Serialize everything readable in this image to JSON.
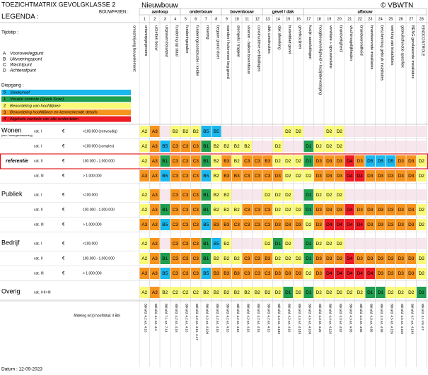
{
  "header": {
    "title": "TOEZICHTMATRIX GEVOLGKLASSE 2",
    "subtitle": "Nieuwbouw",
    "copyright": "© VBWTN",
    "legend_title": "LEGENDA :",
    "phases_label": "BOUWFASEN :",
    "element_label": "omschrijving bouwelement:"
  },
  "timing": {
    "label": "Tijdstip :",
    "items": [
      {
        "code": "A",
        "label": "Vooroverlegpunt"
      },
      {
        "code": "B",
        "label": "Uitvoeringspunt"
      },
      {
        "code": "C",
        "label": "Wachtpunt"
      },
      {
        "code": "D",
        "label": "Achterafpunt"
      }
    ]
  },
  "depth": {
    "label": "Diepgang :",
    "items": [
      {
        "number": "5",
        "label": "Steekproef",
        "color": "#1ab8ef"
      },
      {
        "number": "1",
        "label": "Visuele controle (Quick Scan)",
        "color": "#1f9e50"
      },
      {
        "number": "2",
        "label": "Beoordeling van hoofdlijnen",
        "color": "#fafa78"
      },
      {
        "number": "3",
        "label": "Beoordeling hoofdlijnen en kenmerkende details",
        "color": "#f7941d"
      },
      {
        "number": "4",
        "label": "Algehele controle van alle onderdelen",
        "color": "#ee1c24"
      }
    ]
  },
  "columns": [
    {
      "number": "1",
      "phase": "aanloop",
      "element": "ontwerpgegevens",
      "reference": "Bbl afd. 4.2 art. 4.16"
    },
    {
      "number": "2",
      "phase": "aanloop",
      "element": "uitzetten bouw",
      "reference": "Bbl afd. 4.1 art. 4.4"
    },
    {
      "number": "3",
      "phase": "aanloop",
      "element": "uitgraven bouwput",
      "reference": "Bbl afd. 7.1 art. 7.14"
    },
    {
      "number": "4",
      "phase": "aanloop",
      "element": "fundering op staal",
      "reference": "Bbl afd. 4.2 art. 4.16"
    },
    {
      "number": "5",
      "phase": "onderbouw",
      "element": "funderingspalen",
      "reference": "Bbl afd. 4.2 art. 4.16"
    },
    {
      "number": "6",
      "phase": "onderbouw",
      "element": "funderingsconstructie / kelder",
      "reference": "Bbl afd. 4.2 art. 4.16, 4.17"
    },
    {
      "number": "7",
      "phase": "onderbouw",
      "element": "riolering",
      "reference": "Bbl afd. 4.2 art. 4.190"
    },
    {
      "number": "8",
      "phase": "onderbouw",
      "element": "begane grond vloer",
      "reference": "Bbl afd. 4.2 art. 4.16"
    },
    {
      "number": "9",
      "phase": "bovenbouw",
      "element": "wanden / kolommen beg.grond",
      "reference": "Bbl afd. 4.2 art. 4.16"
    },
    {
      "number": "10",
      "phase": "bovenbouw",
      "element": "stempels / trappen",
      "reference": "Bbl afd. 4.2 art. 4.16"
    },
    {
      "number": "11",
      "phase": "bovenbouw",
      "element": "vloeren - balken bovenbouw",
      "reference": "Bbl afd. 4.2 art. 4.16"
    },
    {
      "number": "12",
      "phase": "bovenbouw",
      "element": "constructieve verbindingen",
      "reference": "Bbl afd. 4.2 art. 4.16"
    },
    {
      "number": "13",
      "phase": "gevel / dak",
      "element": "dak constructies",
      "reference": "Bbl afd. 4.2 art. 4.16"
    },
    {
      "number": "14",
      "phase": "gevel / dak",
      "element": "dak afwerking",
      "reference": "Bbl afd. 4.4 art. 4.149"
    },
    {
      "number": "15",
      "phase": "gevel / dak",
      "element": "buitenblad gevel",
      "reference": "Bbl afd. 4.2 art. 4.16"
    },
    {
      "number": "16",
      "phase": "gevel / dak",
      "element": "gevelkozijnen",
      "reference": "Bbl afd. 4.4 art. 4.149"
    },
    {
      "number": "17",
      "phase": "afbouw",
      "element": "kozijn aansluitingen",
      "reference": "Bbl afd. 4.6 art. 4.160"
    },
    {
      "number": "18",
      "phase": "afbouw",
      "element": "hoogbouw/veiligheid + kozijnbevestiging",
      "reference": "Bbl afd. 4.3 art. 4.25"
    },
    {
      "number": "19",
      "phase": "afbouw",
      "element": "ventilatie + spouwisolatie",
      "reference": "Bbl afd. 4.4 art. 4.126"
    },
    {
      "number": "20",
      "phase": "afbouw",
      "element": "brandveiligheid",
      "reference": "Bbl afd. 4.3 art. 4.52"
    },
    {
      "number": "21",
      "phase": "afbouw",
      "element": "vluchtmogelijkheden",
      "reference": "Bbl afd. 4.3 art. 4.68"
    },
    {
      "number": "22",
      "phase": "afbouw",
      "element": "brandwerendheid",
      "reference": "Bbl afd. 4.3 art. 4.55"
    },
    {
      "number": "23",
      "phase": "afbouw",
      "element": "brandwerende installaties",
      "reference": "Bbl afd. 4.3 art. 4.86"
    },
    {
      "number": "24",
      "phase": "afbouw",
      "element": "bescherming gebruik installaties",
      "reference": "Bbl afd. 4.3 art. 4.99"
    },
    {
      "number": "25",
      "phase": "afbouw",
      "element": "werking van installaties",
      "reference": "Bbl afd. 4.5 art. 4.155"
    },
    {
      "number": "26",
      "phase": "afbouw",
      "element": "gebruiksfunctie specifiek",
      "reference": "Bbl afd. 4.5 art. 4.156"
    },
    {
      "number": "27",
      "phase": "afbouw",
      "element": "BENG gerelateerde installaties",
      "reference": "Bbl afd. 4.7 art. 4.149"
    },
    {
      "number": "28",
      "phase": "afbouw",
      "element": "EINDCONTROLE",
      "reference": "Bbl afd. 4.1 t/m 4.7"
    }
  ],
  "sections": [
    {
      "label": "Wonen",
      "note": "(een-/ meergezinswoning)",
      "rows": [
        {
          "category": "cat. I",
          "currency": "€",
          "range": "<100.000 (eenvoudig)",
          "cells": [
            "A2",
            "A3",
            null,
            "B2",
            "B2",
            "B2",
            "B5",
            "B5",
            null,
            null,
            null,
            null,
            null,
            null,
            "D2",
            "D2",
            null,
            null,
            "D2",
            "D2",
            null,
            null,
            null,
            null,
            null,
            null,
            null,
            null
          ]
        },
        {
          "category": "cat. I",
          "currency": "€",
          "range": "<100.000 (complex)",
          "cells": [
            "A2",
            "A3",
            "B5",
            "C3",
            "C3",
            "C3",
            "B1",
            "B2",
            "B2",
            "B2",
            "B2",
            null,
            null,
            "D2",
            null,
            null,
            "D1",
            "D2",
            "D2",
            "D2",
            null,
            null,
            null,
            null,
            null,
            null,
            null,
            null
          ]
        },
        {
          "tag": "referentie",
          "category": "cat. II",
          "currency": "€",
          "range": "100.000 - 1.000.000",
          "cells": [
            "A2",
            "A3",
            "B1",
            "C3",
            "C3",
            "C3",
            "B1",
            "B2",
            "B3",
            "B2",
            "C3",
            "C3",
            "B3",
            "D2",
            "D2",
            "D2",
            "D1",
            "D3",
            "D3",
            "D3",
            "D4",
            "D3",
            "D5",
            "D5",
            "D5",
            "D3",
            "D3",
            "D2"
          ]
        },
        {
          "category": "cat. III",
          "currency": "€",
          "range": "> 1.000.000",
          "cells": [
            "A3",
            "A3",
            "B5",
            "C3",
            "C3",
            "C3",
            "B5",
            "B2",
            "B3",
            "B3",
            "C3",
            "C3",
            "C3",
            "D3",
            "D2",
            "D2",
            "D2",
            "D3",
            "D3",
            "D3",
            "D4",
            "D4",
            "D3",
            "D3",
            "D3",
            "D3",
            "D3",
            "D2"
          ]
        }
      ]
    },
    {
      "label": "Publiek",
      "rows": [
        {
          "category": "cat. I",
          "currency": "€",
          "range": "<100.000",
          "cells": [
            "A2",
            "A3",
            null,
            "C3",
            "C3",
            "C3",
            "B1",
            "B2",
            "B2",
            null,
            null,
            null,
            "D2",
            "D2",
            "D2",
            null,
            "D1",
            "D2",
            "D2",
            "D2",
            null,
            null,
            null,
            null,
            null,
            null,
            null,
            null
          ]
        },
        {
          "category": "cat. II",
          "currency": "€",
          "range": "100.000 - 1.000.000",
          "cells": [
            "A2",
            "A3",
            "B1",
            "C3",
            "C3",
            "C3",
            "B1",
            "B2",
            "B2",
            "B2",
            "C3",
            "C3",
            "C3",
            "D2",
            "D2",
            "D2",
            "D1",
            "D3",
            "D3",
            "D3",
            "D4",
            "D3",
            "D3",
            "D3",
            "D3",
            "D3",
            "D3",
            "D2"
          ]
        },
        {
          "category": "cat. III",
          "currency": "€",
          "range": "> 1.000.000",
          "cells": [
            "A3",
            "A3",
            "B5",
            "C3",
            "C3",
            "C3",
            "B5",
            "B3",
            "B3",
            "C3",
            "C3",
            "C3",
            "C3",
            "D3",
            "D3",
            "D3",
            "D2",
            "D3",
            "D4",
            "D4",
            "D4",
            "D4",
            "D3",
            "D3",
            "D3",
            "D3",
            "D3",
            "D2"
          ]
        }
      ]
    },
    {
      "label": "Bedrijf",
      "rows": [
        {
          "category": "cat. I",
          "currency": "€",
          "range": "<100.000",
          "cells": [
            "A2",
            "A3",
            null,
            "C3",
            "C3",
            "C3",
            "B1",
            "B5",
            "B2",
            null,
            null,
            null,
            "D2",
            "D1",
            "D2",
            null,
            "D1",
            "D2",
            "D2",
            "D2",
            null,
            null,
            null,
            null,
            null,
            null,
            null,
            null
          ]
        },
        {
          "category": "cat. II",
          "currency": "€",
          "range": "100.000 - 1.000.000",
          "cells": [
            "A2",
            "A3",
            "B1",
            "C3",
            "C3",
            "C3",
            "B1",
            "B2",
            "B2",
            "B2",
            "C3",
            "C3",
            "B3",
            "D2",
            "D2",
            "D2",
            "D1",
            "D3",
            "D3",
            "D3",
            "D4",
            "D3",
            "D3",
            "D3",
            "D3",
            "D3",
            "D3",
            "D2"
          ]
        },
        {
          "category": "cat. III",
          "currency": "€",
          "range": "> 1.000.000",
          "cells": [
            "A3",
            "A3",
            "B5",
            "C3",
            "C3",
            "C3",
            "B5",
            "B3",
            "B3",
            "B3",
            "C3",
            "C3",
            "C3",
            "D3",
            "D3",
            "D3",
            "D2",
            "D3",
            "D4",
            "D4",
            "D4",
            "D4",
            "D4",
            "D3",
            "D3",
            "D3",
            "D3",
            "D2"
          ]
        }
      ]
    },
    {
      "label": "Overig",
      "rows": [
        {
          "category": "cat. I+II+III",
          "cells": [
            "A2",
            "A3",
            "B2",
            "C2",
            "C2",
            "C2",
            "B2",
            "B2",
            "B2",
            "B2",
            "B2",
            "B2",
            "B2",
            "D2",
            "D1",
            "D2",
            "D1",
            "D2",
            "D2",
            "D2",
            "D2",
            "D2",
            "D1",
            "D1",
            "D2",
            "D2",
            "D2",
            "D1"
          ]
        }
      ]
    }
  ],
  "footer": {
    "references_label": "Afdeling nr(s) hoofdstuk 4 Bbl",
    "date": "Datum : 12-09-2023"
  }
}
